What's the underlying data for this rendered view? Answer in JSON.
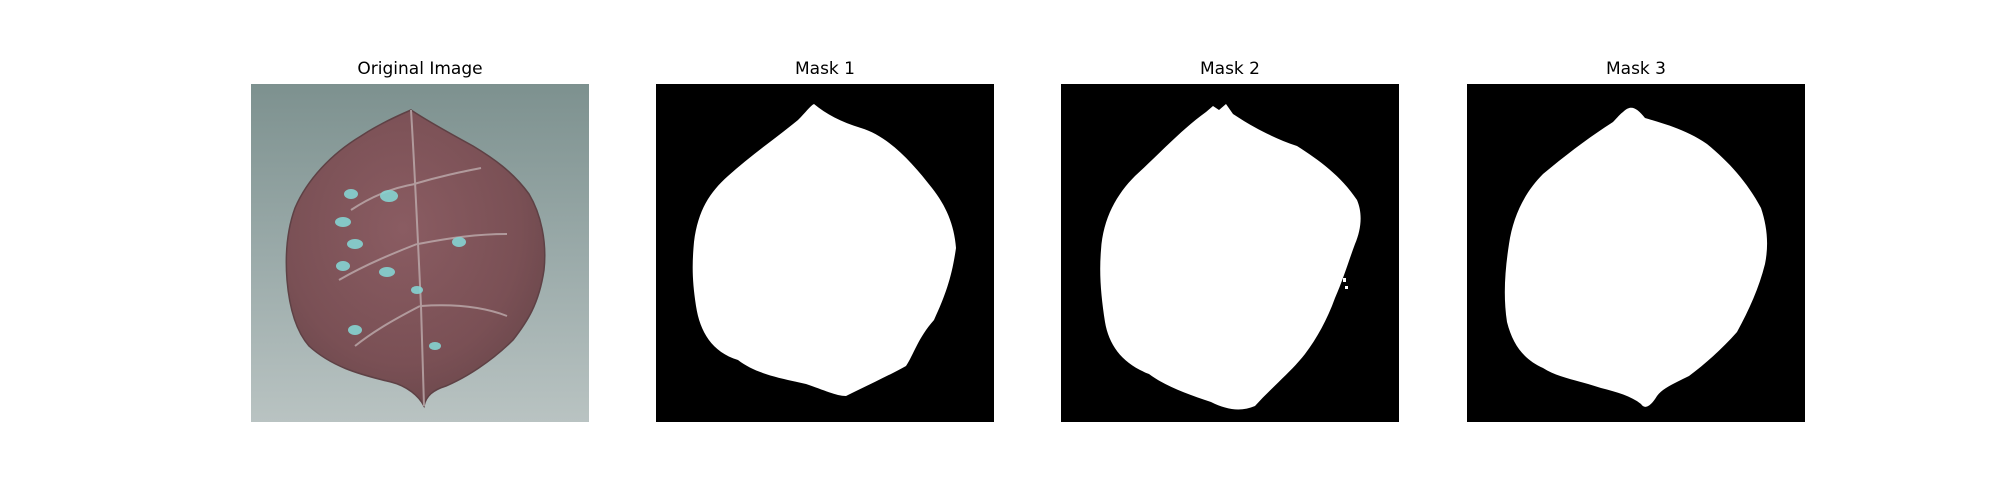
{
  "panels": [
    {
      "title": "Original Image"
    },
    {
      "title": "Mask 1"
    },
    {
      "title": "Mask 2"
    },
    {
      "title": "Mask 3"
    }
  ],
  "colors": {
    "background": "#ffffff",
    "mask_background": "#000000",
    "mask_foreground": "#ffffff",
    "leaf": "#7d5257",
    "leaf_background": "#8a9c9b",
    "lesion": "#86d4d2"
  }
}
